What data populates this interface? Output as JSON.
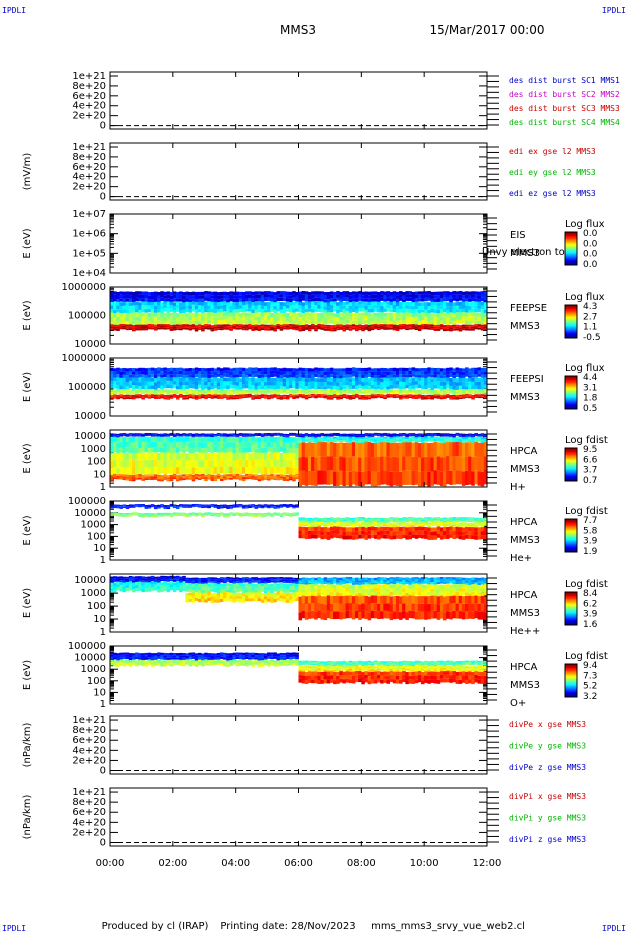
{
  "header": {
    "corner_left": "IPDLI",
    "corner_right": "IPDLI",
    "bottom_left": "IPDLI",
    "bottom_right": "IPDLI",
    "spacecraft": "MMS3",
    "date": "15/Mar/2017 00:00"
  },
  "footer": {
    "produced_by": "Produced by cl (IRAP)",
    "printing_date": "Printing date: 28/Nov/2023",
    "file": "mms_mms3_srvy_vue_web2.cl"
  },
  "colors": {
    "axis": "#000000",
    "mms1": "#0000c8",
    "mms2": "#c800c8",
    "mms3": "#c80000",
    "mms4": "#00b400",
    "x_comp": "#c80000",
    "y_comp": "#00b400",
    "z_comp": "#0000c8"
  },
  "chart_data": {
    "type": "multi-panel",
    "x_axis": {
      "ticks": [
        "00:00",
        "02:00",
        "04:00",
        "06:00",
        "08:00",
        "10:00",
        "12:00"
      ],
      "range_hours": [
        0,
        12
      ]
    },
    "panels": [
      {
        "id": "dist",
        "type": "line",
        "ylabel": "",
        "yticks": [
          "1e+21",
          "8e+20",
          "6e+20",
          "4e+20",
          "2e+20",
          "0"
        ],
        "zero_dashed": true,
        "legend": [
          {
            "text": "des dist burst SC1 MMS1",
            "color": "#0000c8"
          },
          {
            "text": "des dist burst SC2 MMS2",
            "color": "#c800c8"
          },
          {
            "text": "des dist burst SC3 MMS3",
            "color": "#c80000"
          },
          {
            "text": "des dist burst SC4 MMS4",
            "color": "#00b400"
          }
        ]
      },
      {
        "id": "edi",
        "type": "line",
        "ylabel": "(mV/m)",
        "yticks": [
          "1e+21",
          "8e+20",
          "6e+20",
          "4e+20",
          "2e+20",
          "0"
        ],
        "zero_dashed": true,
        "legend": [
          {
            "text": "edi ex gse l2 MMS3",
            "color": "#c80000"
          },
          {
            "text": "edi ey gse l2 MMS3",
            "color": "#00b400"
          },
          {
            "text": "edi ez gse l2 MMS3",
            "color": "#0000c8"
          }
        ]
      },
      {
        "id": "eis",
        "type": "heatmap",
        "ylabel": "E (eV)",
        "yticks": [
          "1e+07",
          "1e+06",
          "1e+05",
          "1e+04"
        ],
        "yscale": "log",
        "ylim": [
          10000,
          10000000
        ],
        "instrument": [
          "EIS",
          "MMS3"
        ],
        "overlay_text": "Unvy electron to",
        "colorbar": {
          "title": "Log flux",
          "ticks": [
            "0.0",
            "0.0",
            "0.0",
            "0.0"
          ]
        },
        "empty": true
      },
      {
        "id": "feepse",
        "type": "heatmap",
        "ylabel": "E (eV)",
        "yticks": [
          "1000000",
          "100000",
          "10000"
        ],
        "yscale": "log",
        "ylim": [
          10000,
          1000000
        ],
        "instrument": [
          "FEEPSE",
          "MMS3"
        ],
        "colorbar": {
          "title": "Log flux",
          "ticks": [
            "4.3",
            "2.7",
            "1.1",
            "-0.5"
          ]
        }
      },
      {
        "id": "feepsi",
        "type": "heatmap",
        "ylabel": "E (eV)",
        "yticks": [
          "1000000",
          "100000",
          "10000"
        ],
        "yscale": "log",
        "ylim": [
          10000,
          1000000
        ],
        "instrument": [
          "FEEPSI",
          "MMS3"
        ],
        "colorbar": {
          "title": "Log flux",
          "ticks": [
            "4.4",
            "3.1",
            "1.8",
            "0.5"
          ]
        }
      },
      {
        "id": "hpca_h",
        "type": "heatmap",
        "ylabel": "E (eV)",
        "yticks": [
          "10000",
          "1000",
          "100",
          "10",
          "1"
        ],
        "yscale": "log",
        "ylim": [
          1,
          30000
        ],
        "instrument": [
          "HPCA",
          "MMS3",
          "H+"
        ],
        "colorbar": {
          "title": "Log fdist",
          "ticks": [
            "9.5",
            "6.6",
            "3.7",
            "0.7"
          ]
        }
      },
      {
        "id": "hpca_he1",
        "type": "heatmap",
        "ylabel": "E (eV)",
        "yticks": [
          "100000",
          "10000",
          "1000",
          "100",
          "10",
          "1"
        ],
        "yscale": "log",
        "ylim": [
          1,
          100000
        ],
        "instrument": [
          "HPCA",
          "MMS3",
          "He+"
        ],
        "colorbar": {
          "title": "Log fdist",
          "ticks": [
            "7.7",
            "5.8",
            "3.9",
            "1.9"
          ]
        }
      },
      {
        "id": "hpca_he2",
        "type": "heatmap",
        "ylabel": "E (eV)",
        "yticks": [
          "10000",
          "1000",
          "100",
          "10",
          "1"
        ],
        "yscale": "log",
        "ylim": [
          1,
          30000
        ],
        "instrument": [
          "HPCA",
          "MMS3",
          "He++"
        ],
        "colorbar": {
          "title": "Log fdist",
          "ticks": [
            "8.4",
            "6.2",
            "3.9",
            "1.6"
          ]
        }
      },
      {
        "id": "hpca_o",
        "type": "heatmap",
        "ylabel": "E (eV)",
        "yticks": [
          "100000",
          "10000",
          "1000",
          "100",
          "10",
          "1"
        ],
        "yscale": "log",
        "ylim": [
          1,
          100000
        ],
        "instrument": [
          "HPCA",
          "MMS3",
          "O+"
        ],
        "colorbar": {
          "title": "Log fdist",
          "ticks": [
            "9.4",
            "7.3",
            "5.2",
            "3.2"
          ]
        }
      },
      {
        "id": "divpe",
        "type": "line",
        "ylabel": "(nPa/km)",
        "yticks": [
          "1e+21",
          "8e+20",
          "6e+20",
          "4e+20",
          "2e+20",
          "0"
        ],
        "zero_dashed": true,
        "legend": [
          {
            "text": "divPe x gse MMS3",
            "color": "#c80000"
          },
          {
            "text": "divPe y gse MMS3",
            "color": "#00b400"
          },
          {
            "text": "divPe z gse MMS3",
            "color": "#0000c8"
          }
        ]
      },
      {
        "id": "divpi",
        "type": "line",
        "ylabel": "(nPa/km)",
        "yticks": [
          "1e+21",
          "8e+20",
          "6e+20",
          "4e+20",
          "2e+20",
          "0"
        ],
        "zero_dashed": true,
        "legend": [
          {
            "text": "divPi x gse MMS3",
            "color": "#c80000"
          },
          {
            "text": "divPi y gse MMS3",
            "color": "#00b400"
          },
          {
            "text": "divPi z gse MMS3",
            "color": "#0000c8"
          }
        ]
      }
    ]
  }
}
